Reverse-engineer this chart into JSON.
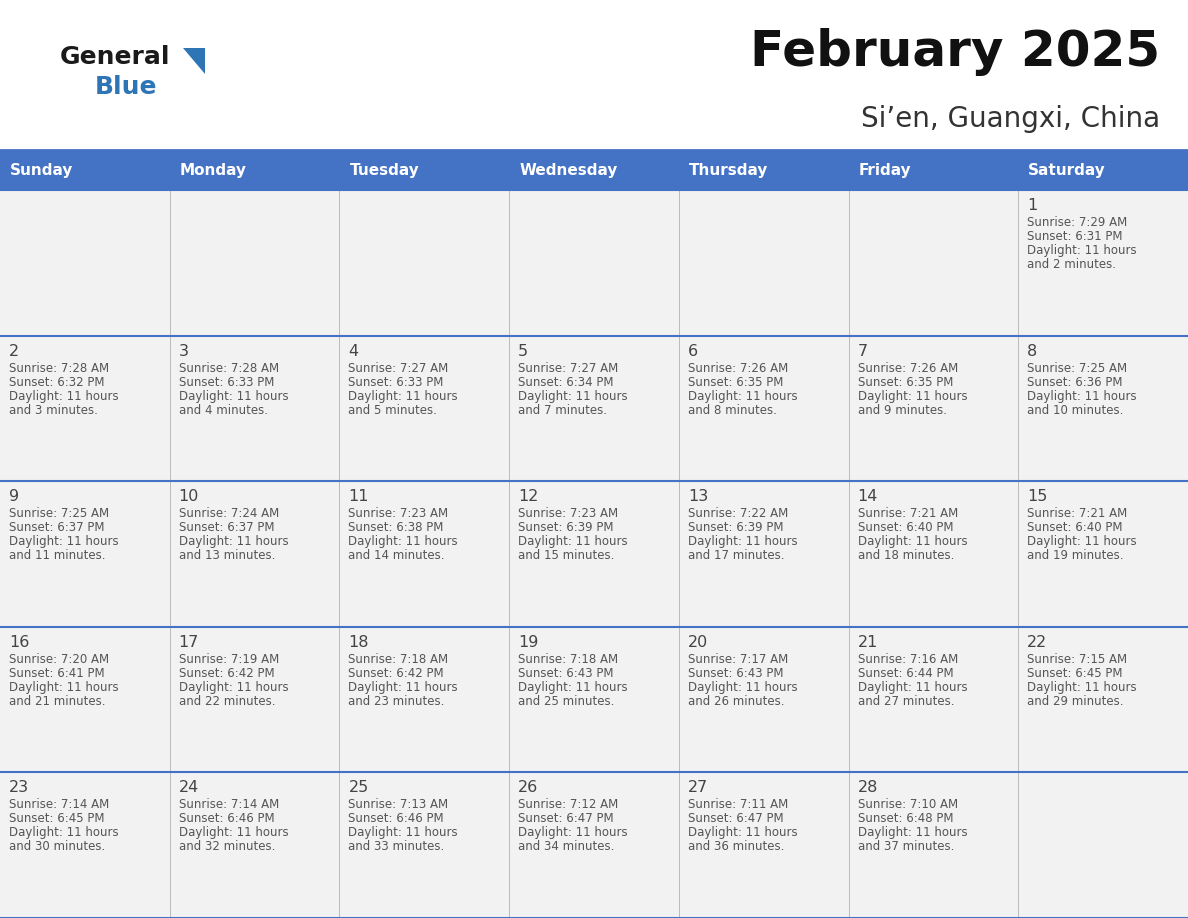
{
  "title": "February 2025",
  "subtitle": "Si’en, Guangxi, China",
  "days_of_week": [
    "Sunday",
    "Monday",
    "Tuesday",
    "Wednesday",
    "Thursday",
    "Friday",
    "Saturday"
  ],
  "header_bg": "#4472C4",
  "header_text": "#FFFFFF",
  "cell_bg": "#F2F2F2",
  "border_color": "#4472C4",
  "day_number_color": "#444444",
  "text_color": "#555555",
  "title_color": "#111111",
  "subtitle_color": "#333333",
  "logo_general_color": "#1a1a1a",
  "logo_blue_color": "#2E75B6",
  "logo_triangle_color": "#2E75B6",
  "calendar_data": [
    {
      "day": 1,
      "col": 6,
      "row": 0,
      "sunrise": "7:29 AM",
      "sunset": "6:31 PM",
      "daylight": "11 hours and 2 minutes"
    },
    {
      "day": 2,
      "col": 0,
      "row": 1,
      "sunrise": "7:28 AM",
      "sunset": "6:32 PM",
      "daylight": "11 hours and 3 minutes"
    },
    {
      "day": 3,
      "col": 1,
      "row": 1,
      "sunrise": "7:28 AM",
      "sunset": "6:33 PM",
      "daylight": "11 hours and 4 minutes"
    },
    {
      "day": 4,
      "col": 2,
      "row": 1,
      "sunrise": "7:27 AM",
      "sunset": "6:33 PM",
      "daylight": "11 hours and 5 minutes"
    },
    {
      "day": 5,
      "col": 3,
      "row": 1,
      "sunrise": "7:27 AM",
      "sunset": "6:34 PM",
      "daylight": "11 hours and 7 minutes"
    },
    {
      "day": 6,
      "col": 4,
      "row": 1,
      "sunrise": "7:26 AM",
      "sunset": "6:35 PM",
      "daylight": "11 hours and 8 minutes"
    },
    {
      "day": 7,
      "col": 5,
      "row": 1,
      "sunrise": "7:26 AM",
      "sunset": "6:35 PM",
      "daylight": "11 hours and 9 minutes"
    },
    {
      "day": 8,
      "col": 6,
      "row": 1,
      "sunrise": "7:25 AM",
      "sunset": "6:36 PM",
      "daylight": "11 hours and 10 minutes"
    },
    {
      "day": 9,
      "col": 0,
      "row": 2,
      "sunrise": "7:25 AM",
      "sunset": "6:37 PM",
      "daylight": "11 hours and 11 minutes"
    },
    {
      "day": 10,
      "col": 1,
      "row": 2,
      "sunrise": "7:24 AM",
      "sunset": "6:37 PM",
      "daylight": "11 hours and 13 minutes"
    },
    {
      "day": 11,
      "col": 2,
      "row": 2,
      "sunrise": "7:23 AM",
      "sunset": "6:38 PM",
      "daylight": "11 hours and 14 minutes"
    },
    {
      "day": 12,
      "col": 3,
      "row": 2,
      "sunrise": "7:23 AM",
      "sunset": "6:39 PM",
      "daylight": "11 hours and 15 minutes"
    },
    {
      "day": 13,
      "col": 4,
      "row": 2,
      "sunrise": "7:22 AM",
      "sunset": "6:39 PM",
      "daylight": "11 hours and 17 minutes"
    },
    {
      "day": 14,
      "col": 5,
      "row": 2,
      "sunrise": "7:21 AM",
      "sunset": "6:40 PM",
      "daylight": "11 hours and 18 minutes"
    },
    {
      "day": 15,
      "col": 6,
      "row": 2,
      "sunrise": "7:21 AM",
      "sunset": "6:40 PM",
      "daylight": "11 hours and 19 minutes"
    },
    {
      "day": 16,
      "col": 0,
      "row": 3,
      "sunrise": "7:20 AM",
      "sunset": "6:41 PM",
      "daylight": "11 hours and 21 minutes"
    },
    {
      "day": 17,
      "col": 1,
      "row": 3,
      "sunrise": "7:19 AM",
      "sunset": "6:42 PM",
      "daylight": "11 hours and 22 minutes"
    },
    {
      "day": 18,
      "col": 2,
      "row": 3,
      "sunrise": "7:18 AM",
      "sunset": "6:42 PM",
      "daylight": "11 hours and 23 minutes"
    },
    {
      "day": 19,
      "col": 3,
      "row": 3,
      "sunrise": "7:18 AM",
      "sunset": "6:43 PM",
      "daylight": "11 hours and 25 minutes"
    },
    {
      "day": 20,
      "col": 4,
      "row": 3,
      "sunrise": "7:17 AM",
      "sunset": "6:43 PM",
      "daylight": "11 hours and 26 minutes"
    },
    {
      "day": 21,
      "col": 5,
      "row": 3,
      "sunrise": "7:16 AM",
      "sunset": "6:44 PM",
      "daylight": "11 hours and 27 minutes"
    },
    {
      "day": 22,
      "col": 6,
      "row": 3,
      "sunrise": "7:15 AM",
      "sunset": "6:45 PM",
      "daylight": "11 hours and 29 minutes"
    },
    {
      "day": 23,
      "col": 0,
      "row": 4,
      "sunrise": "7:14 AM",
      "sunset": "6:45 PM",
      "daylight": "11 hours and 30 minutes"
    },
    {
      "day": 24,
      "col": 1,
      "row": 4,
      "sunrise": "7:14 AM",
      "sunset": "6:46 PM",
      "daylight": "11 hours and 32 minutes"
    },
    {
      "day": 25,
      "col": 2,
      "row": 4,
      "sunrise": "7:13 AM",
      "sunset": "6:46 PM",
      "daylight": "11 hours and 33 minutes"
    },
    {
      "day": 26,
      "col": 3,
      "row": 4,
      "sunrise": "7:12 AM",
      "sunset": "6:47 PM",
      "daylight": "11 hours and 34 minutes"
    },
    {
      "day": 27,
      "col": 4,
      "row": 4,
      "sunrise": "7:11 AM",
      "sunset": "6:47 PM",
      "daylight": "11 hours and 36 minutes"
    },
    {
      "day": 28,
      "col": 5,
      "row": 4,
      "sunrise": "7:10 AM",
      "sunset": "6:48 PM",
      "daylight": "11 hours and 37 minutes"
    }
  ]
}
